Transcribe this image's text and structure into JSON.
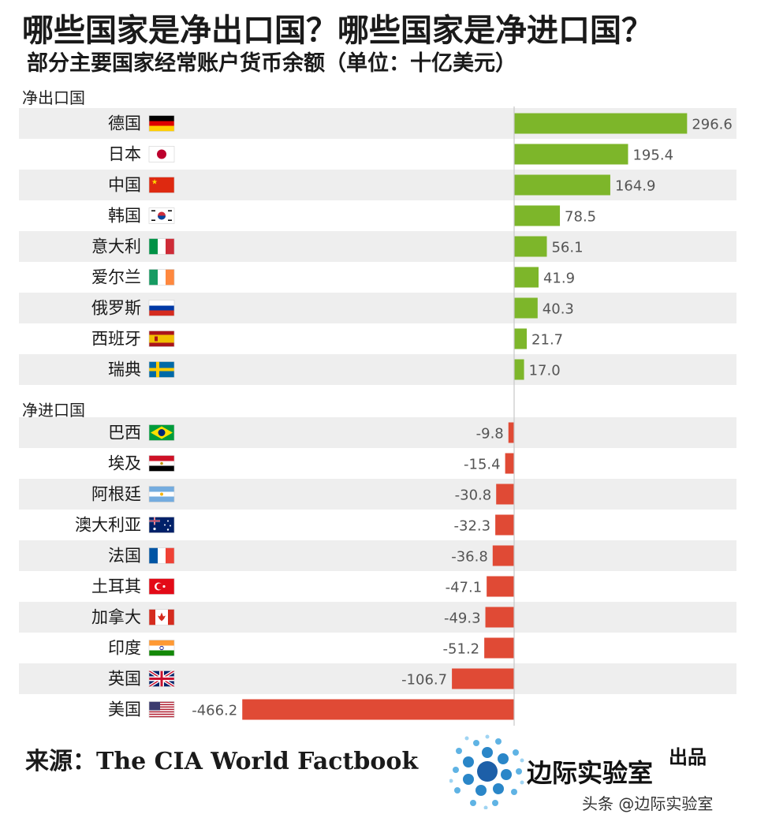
{
  "header": {
    "title": "哪些国家是净出口国？哪些国家是净进口国？",
    "subtitle": "部分主要国家经常账户货币余额（单位：十亿美元）"
  },
  "sections": {
    "exporters_label": "净出口国",
    "importers_label": "净进口国"
  },
  "chart_data": {
    "type": "bar",
    "orientation": "horizontal",
    "title": "哪些国家是净出口国？哪些国家是净进口国？",
    "subtitle": "部分主要国家经常账户货币余额（单位：十亿美元）",
    "unit": "十亿美元",
    "groups": [
      {
        "name": "净出口国",
        "color": "#7db62a",
        "rows": [
          {
            "label": "德国",
            "flag": "germany-flag",
            "value": 296.6,
            "display": "296.6"
          },
          {
            "label": "日本",
            "flag": "japan-flag",
            "value": 195.4,
            "display": "195.4"
          },
          {
            "label": "中国",
            "flag": "china-flag",
            "value": 164.9,
            "display": "164.9"
          },
          {
            "label": "韩国",
            "flag": "south-korea-flag",
            "value": 78.5,
            "display": "78.5"
          },
          {
            "label": "意大利",
            "flag": "italy-flag",
            "value": 56.1,
            "display": "56.1"
          },
          {
            "label": "爱尔兰",
            "flag": "ireland-flag",
            "value": 41.9,
            "display": "41.9"
          },
          {
            "label": "俄罗斯",
            "flag": "russia-flag",
            "value": 40.3,
            "display": "40.3"
          },
          {
            "label": "西班牙",
            "flag": "spain-flag",
            "value": 21.7,
            "display": "21.7"
          },
          {
            "label": "瑞典",
            "flag": "sweden-flag",
            "value": 17.0,
            "display": "17.0"
          }
        ]
      },
      {
        "name": "净进口国",
        "color": "#e04a35",
        "rows": [
          {
            "label": "巴西",
            "flag": "brazil-flag",
            "value": -9.8,
            "display": "-9.8"
          },
          {
            "label": "埃及",
            "flag": "egypt-flag",
            "value": -15.4,
            "display": "-15.4"
          },
          {
            "label": "阿根廷",
            "flag": "argentina-flag",
            "value": -30.8,
            "display": "-30.8"
          },
          {
            "label": "澳大利亚",
            "flag": "australia-flag",
            "value": -32.3,
            "display": "-32.3"
          },
          {
            "label": "法国",
            "flag": "france-flag",
            "value": -36.8,
            "display": "-36.8"
          },
          {
            "label": "土耳其",
            "flag": "turkey-flag",
            "value": -47.1,
            "display": "-47.1"
          },
          {
            "label": "加拿大",
            "flag": "canada-flag",
            "value": -49.3,
            "display": "-49.3"
          },
          {
            "label": "印度",
            "flag": "india-flag",
            "value": -51.2,
            "display": "-51.2"
          },
          {
            "label": "英国",
            "flag": "uk-flag",
            "value": -106.7,
            "display": "-106.7"
          },
          {
            "label": "美国",
            "flag": "usa-flag",
            "value": -466.2,
            "display": "-466.2"
          }
        ]
      }
    ],
    "positive_color": "#7db62a",
    "negative_color": "#e04a35",
    "row_stripe_color": "#eeeeee",
    "zero_line_color": "#c8c8c8"
  },
  "footer": {
    "source": "来源：The CIA World Factbook",
    "brand": "边际实验室",
    "produced": "出品",
    "watermark": "头条 @边际实验室"
  }
}
